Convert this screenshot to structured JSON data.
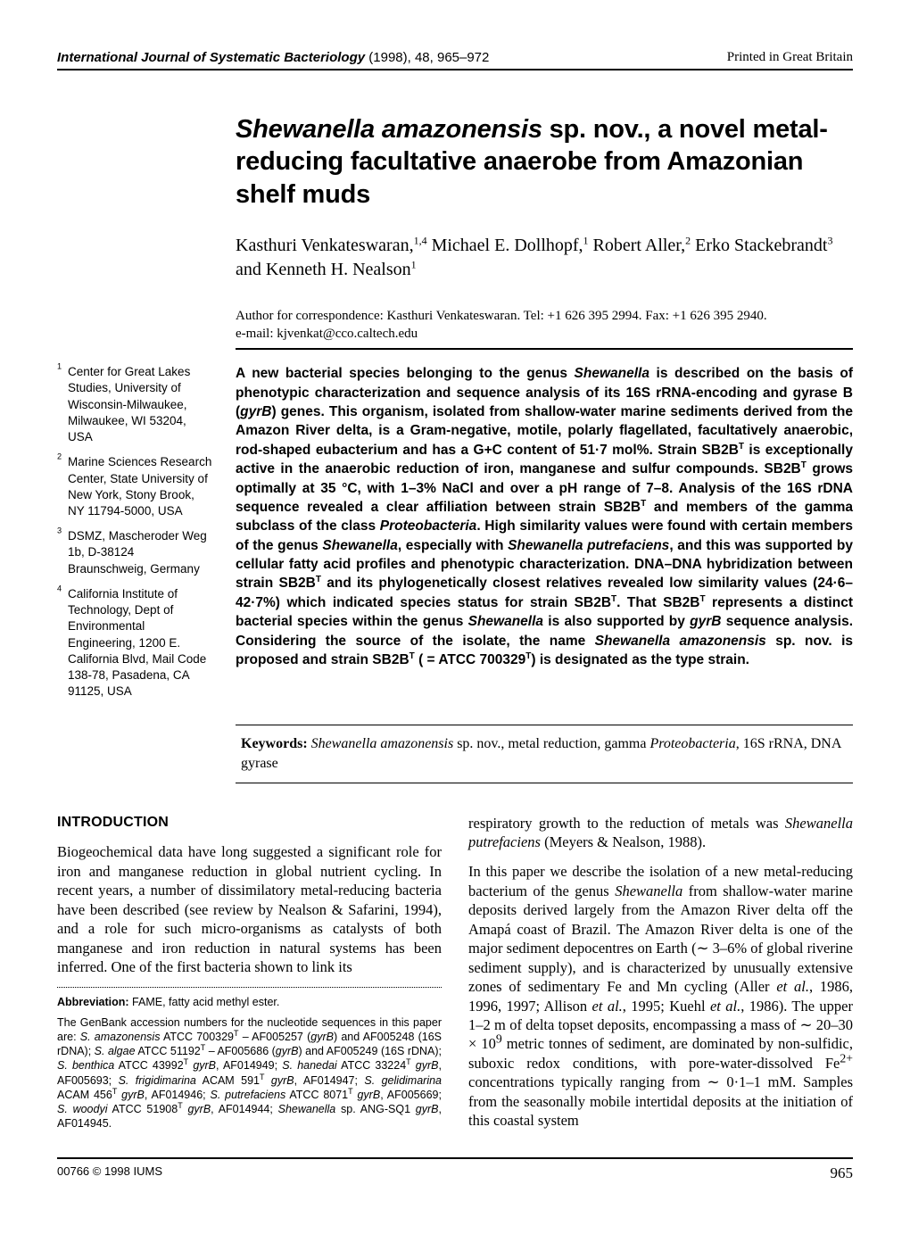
{
  "header": {
    "journal_name": "International Journal of Systematic Bacteriology",
    "year_vol_pages": " (1998), 48, 965–972",
    "printed": "Printed in Great Britain"
  },
  "title": {
    "species": "Shewanella amazonensis",
    "rest": " sp. nov., a novel metal-reducing facultative anaerobe from Amazonian shelf muds"
  },
  "authors_html": "Kasthuri Venkateswaran,<sup>1,4</sup> Michael E. Dollhopf,<sup>1</sup> Robert Aller,<sup>2</sup> Erko Stackebrandt<sup>3</sup> and Kenneth H. Nealson<sup>1</sup>",
  "correspondence": {
    "line1": "Author for correspondence: Kasthuri Venkateswaran. Tel: +1 626 395 2994. Fax: +1 626 395 2940.",
    "line2": "e-mail: kjvenkat@cco.caltech.edu"
  },
  "affiliations": [
    {
      "num": "1",
      "text": "Center for Great Lakes Studies, University of Wisconsin-Milwaukee, Milwaukee, WI 53204, USA"
    },
    {
      "num": "2",
      "text": "Marine Sciences Research Center, State University of New York, Stony Brook, NY 11794-5000, USA"
    },
    {
      "num": "3",
      "text": "DSMZ, Mascheroder Weg 1b, D-38124 Braunschweig, Germany"
    },
    {
      "num": "4",
      "text": "California Institute of Technology, Dept of Environmental Engineering, 1200 E. California Blvd, Mail Code 138-78, Pasadena, CA 91125, USA"
    }
  ],
  "abstract_html": "A new bacterial species belonging to the genus <span class=\"it\">Shewanella</span> is described on the basis of phenotypic characterization and sequence analysis of its 16S rRNA-encoding and gyrase B (<span class=\"it\">gyrB</span>) genes. This organism, isolated from shallow-water marine sediments derived from the Amazon River delta, is a Gram-negative, motile, polarly flagellated, facultatively anaerobic, rod-shaped eubacterium and has a G+C content of 51·7 mol%. Strain SB2B<sup>T</sup> is exceptionally active in the anaerobic reduction of iron, manganese and sulfur compounds. SB2B<sup>T</sup> grows optimally at 35 °C, with 1–3% NaCl and over a pH range of 7–8. Analysis of the 16S rDNA sequence revealed a clear affiliation between strain SB2B<sup>T</sup> and members of the gamma subclass of the class <span class=\"it\">Proteobacteria</span>. High similarity values were found with certain members of the genus <span class=\"it\">Shewanella</span>, especially with <span class=\"it\">Shewanella putrefaciens</span>, and this was supported by cellular fatty acid profiles and phenotypic characterization. DNA–DNA hybridization between strain SB2B<sup>T</sup> and its phylogenetically closest relatives revealed low similarity values (24·6–42·7%) which indicated species status for strain SB2B<sup>T</sup>. That SB2B<sup>T</sup> represents a distinct bacterial species within the genus <span class=\"it\">Shewanella</span> is also supported by <span class=\"it\">gyrB</span> sequence analysis. Considering the source of the isolate, the name <span class=\"it\">Shewanella amazonensis</span> sp. nov. is proposed and strain SB2B<sup>T</sup> ( = ATCC 700329<sup>T</sup>) is designated as the type strain.",
  "keywords": {
    "label": "Keywords:",
    "text_html": " <span class=\"it\">Shewanella amazonensis</span> sp. nov., metal reduction, gamma <span class=\"it\">Proteobacteria</span>, 16S rRNA, DNA gyrase"
  },
  "section_heading": "INTRODUCTION",
  "body": {
    "col1_p1": "Biogeochemical data have long suggested a significant role for iron and manganese reduction in global nutrient cycling. In recent years, a number of dissimilatory metal-reducing bacteria have been described (see review by Nealson & Safarini, 1994), and a role for such micro-organisms as catalysts of both manganese and iron reduction in natural systems has been inferred. One of the first bacteria shown to link its",
    "col2_p1_html": "respiratory growth to the reduction of metals was <span class=\"it\">Shewanella putrefaciens</span> (Meyers & Nealson, 1988).",
    "col2_p2_html": "In this paper we describe the isolation of a new metal-reducing bacterium of the genus <span class=\"it\">Shewanella</span> from shallow-water marine deposits derived largely from the Amazon River delta off the Amapá coast of Brazil. The Amazon River delta is one of the major sediment depocentres on Earth (∼ 3–6% of global riverine sediment supply), and is characterized by unusually extensive zones of sedimentary Fe and Mn cycling (Aller <span class=\"it\">et al.</span>, 1986, 1996, 1997; Allison <span class=\"it\">et al.</span>, 1995; Kuehl <span class=\"it\">et al.</span>, 1986). The upper 1–2 m of delta topset deposits, encompassing a mass of ∼ 20–30 × 10<sup>9</sup> metric tonnes of sediment, are dominated by non-sulfidic, suboxic redox conditions, with pore-water-dissolved Fe<sup>2+</sup> concentrations typically ranging from ∼ 0·1–1 mM. Samples from the seasonally mobile intertidal deposits at the initiation of this coastal system"
  },
  "footnotes": {
    "abbrev_label": "Abbreviation:",
    "abbrev_text": " FAME, fatty acid methyl ester.",
    "genbank_html": "The GenBank accession numbers for the nucleotide sequences in this paper are: <span class=\"it\">S. amazonensis</span> ATCC 700329<sup>T</sup> – AF005257 (<span class=\"it\">gyrB</span>) and AF005248 (16S rDNA); <span class=\"it\">S. algae</span> ATCC 51192<sup>T</sup> – AF005686 (<span class=\"it\">gyrB</span>) and AF005249 (16S rDNA); <span class=\"it\">S. benthica</span> ATCC 43992<sup>T</sup> <span class=\"it\">gyrB</span>, AF014949; <span class=\"it\">S. hanedai</span> ATCC 33224<sup>T</sup> <span class=\"it\">gyrB</span>, AF005693; <span class=\"it\">S. frigidimarina</span> ACAM 591<sup>T</sup> <span class=\"it\">gyrB</span>, AF014947; <span class=\"it\">S. gelidimarina</span> ACAM 456<sup>T</sup> <span class=\"it\">gyrB</span>, AF014946; <span class=\"it\">S. putrefaciens</span> ATCC 8071<sup>T</sup> <span class=\"it\">gyrB</span>, AF005669; <span class=\"it\">S. woodyi</span> ATCC 51908<sup>T</sup> <span class=\"it\">gyrB</span>, AF014944; <span class=\"it\">Shewanella</span> sp. ANG-SQ1 <span class=\"it\">gyrB</span>, AF014945."
  },
  "footer": {
    "copyright": "00766 © 1998 IUMS",
    "page_number": "965"
  }
}
